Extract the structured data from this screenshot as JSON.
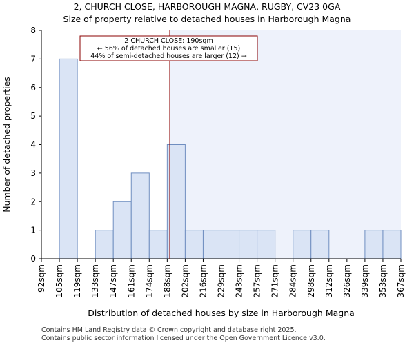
{
  "title": "2, CHURCH CLOSE, HARBOROUGH MAGNA, RUGBY, CV23 0GA",
  "subtitle": "Size of property relative to detached houses in Harborough Magna",
  "footer": {
    "line1": "Contains HM Land Registry data © Crown copyright and database right 2025.",
    "line2": "Contains public sector information licensed under the Open Government Licence v3.0."
  },
  "colors": {
    "bar_fill": "#dae4f5",
    "bar_stroke": "#6f8ec0",
    "highlight_bg": "#eef2fb",
    "marker": "#8b0000",
    "annotation_border": "#8b0000"
  },
  "chart_data": {
    "type": "bar",
    "title": "2, CHURCH CLOSE, HARBOROUGH MAGNA, RUGBY, CV23 0GA",
    "subtitle": "Size of property relative to detached houses in Harborough Magna",
    "xlabel": "Distribution of detached houses by size in Harborough Magna",
    "ylabel": "Number of detached properties",
    "bin_edges": [
      "92sqm",
      "105sqm",
      "119sqm",
      "133sqm",
      "147sqm",
      "161sqm",
      "174sqm",
      "188sqm",
      "202sqm",
      "216sqm",
      "229sqm",
      "243sqm",
      "257sqm",
      "271sqm",
      "284sqm",
      "298sqm",
      "312sqm",
      "326sqm",
      "339sqm",
      "353sqm",
      "367sqm"
    ],
    "values": [
      0,
      7,
      0,
      1,
      2,
      3,
      1,
      4,
      1,
      1,
      1,
      1,
      1,
      0,
      1,
      1,
      0,
      0,
      1,
      1
    ],
    "ylim": [
      0,
      8
    ],
    "yticks": [
      0,
      1,
      2,
      3,
      4,
      5,
      6,
      7,
      8
    ],
    "marker_value_sqm": 190,
    "highlight_from_sqm": 190,
    "annotation": {
      "line1": "2 CHURCH CLOSE: 190sqm",
      "line2": "← 56% of detached houses are smaller (15)",
      "line3": "44% of semi-detached houses are larger (12) →"
    },
    "grid": false
  }
}
